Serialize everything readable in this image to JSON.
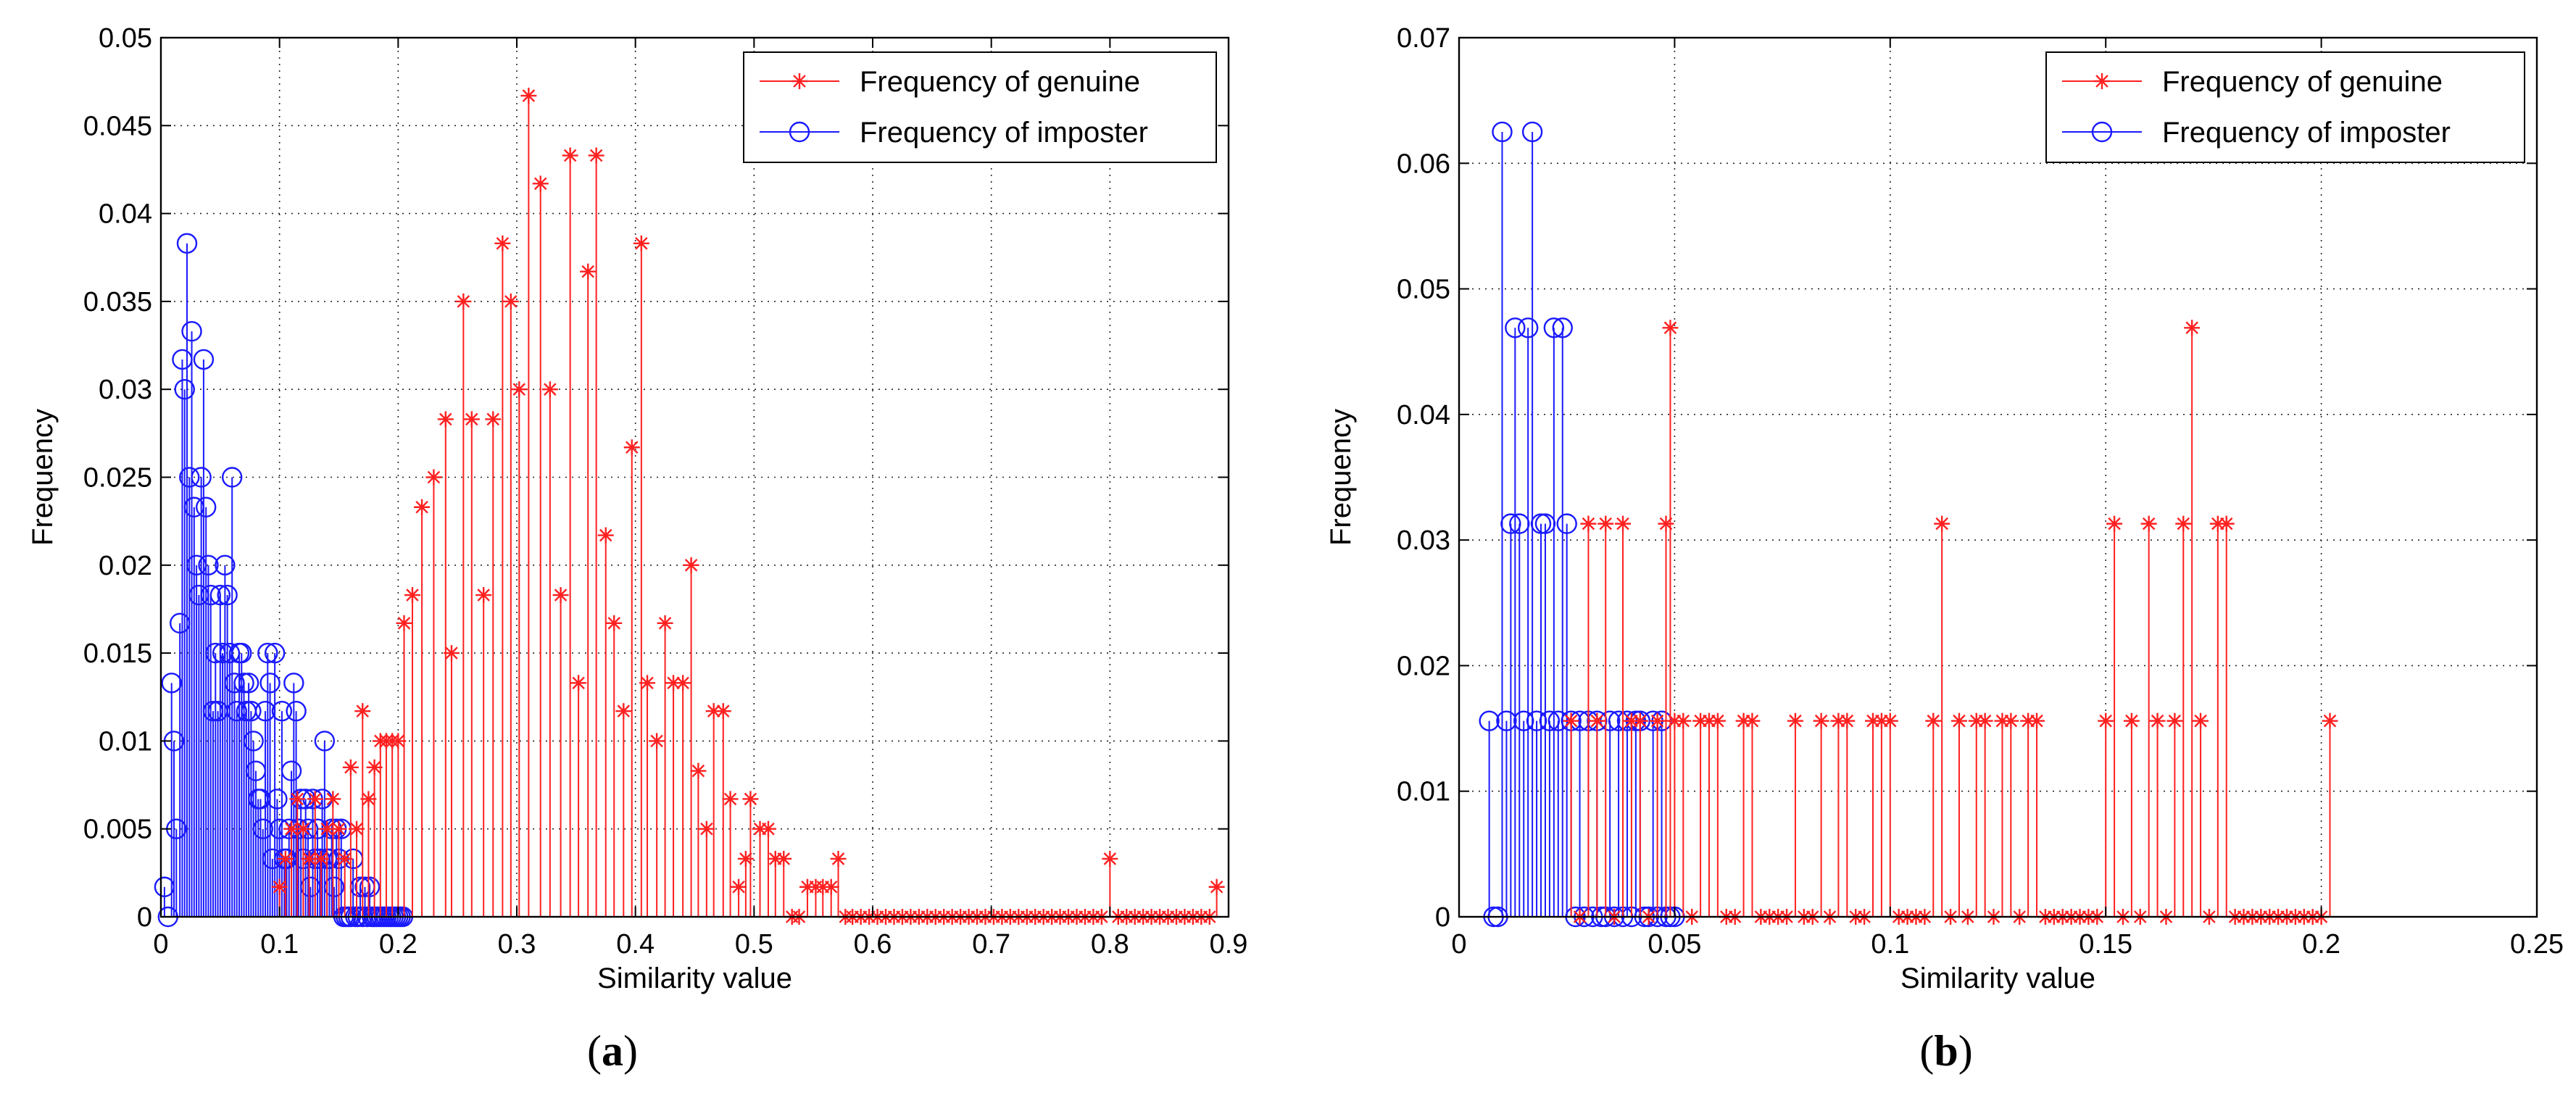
{
  "chart_data": [
    {
      "type": "stem",
      "panel_label": "a",
      "xlabel": "Similarity value",
      "ylabel": "Frequency",
      "xlim": [
        0,
        0.9
      ],
      "ylim": [
        0,
        0.05
      ],
      "xticks": [
        "0",
        "0.1",
        "0.2",
        "0.3",
        "0.4",
        "0.5",
        "0.6",
        "0.7",
        "0.8",
        "0.9"
      ],
      "yticks": [
        "0",
        "0.005",
        "0.01",
        "0.015",
        "0.02",
        "0.025",
        "0.03",
        "0.035",
        "0.04",
        "0.045",
        "0.05"
      ],
      "grid": true,
      "legend_position": "top-right",
      "series": [
        {
          "name": "Frequency of genuine",
          "color": "#ff2020",
          "marker": "star",
          "x": [
            0.1,
            0.105,
            0.11,
            0.115,
            0.12,
            0.125,
            0.13,
            0.135,
            0.14,
            0.145,
            0.15,
            0.155,
            0.16,
            0.165,
            0.17,
            0.175,
            0.18,
            0.185,
            0.19,
            0.195,
            0.2,
            0.205,
            0.212,
            0.22,
            0.23,
            0.24,
            0.245,
            0.255,
            0.262,
            0.272,
            0.28,
            0.288,
            0.295,
            0.302,
            0.31,
            0.32,
            0.328,
            0.337,
            0.345,
            0.352,
            0.36,
            0.367,
            0.375,
            0.382,
            0.39,
            0.397,
            0.405,
            0.41,
            0.418,
            0.425,
            0.432,
            0.44,
            0.447,
            0.453,
            0.46,
            0.466,
            0.474,
            0.48,
            0.487,
            0.493,
            0.497,
            0.505,
            0.512,
            0.518,
            0.525,
            0.532,
            0.538,
            0.545,
            0.552,
            0.558,
            0.565,
            0.571,
            0.577,
            0.583,
            0.59,
            0.597,
            0.604,
            0.611,
            0.618,
            0.625,
            0.632,
            0.639,
            0.646,
            0.653,
            0.66,
            0.667,
            0.674,
            0.681,
            0.688,
            0.695,
            0.702,
            0.709,
            0.716,
            0.723,
            0.73,
            0.737,
            0.744,
            0.751,
            0.758,
            0.765,
            0.772,
            0.779,
            0.786,
            0.793,
            0.8,
            0.807,
            0.814,
            0.821,
            0.828,
            0.835,
            0.842,
            0.849,
            0.856,
            0.863,
            0.87,
            0.877,
            0.884,
            0.89
          ],
          "values": [
            0.0017,
            0.0033,
            0.005,
            0.0067,
            0.005,
            0.0033,
            0.0067,
            0.0033,
            0.005,
            0.0067,
            0.005,
            0.0033,
            0.0085,
            0.005,
            0.0117,
            0.0067,
            0.0085,
            0.01,
            0.01,
            0.01,
            0.01,
            0.0167,
            0.0183,
            0.0233,
            0.025,
            0.0283,
            0.015,
            0.035,
            0.0283,
            0.0183,
            0.0283,
            0.0383,
            0.035,
            0.03,
            0.0467,
            0.0417,
            0.03,
            0.0183,
            0.0433,
            0.0133,
            0.0367,
            0.0433,
            0.0217,
            0.0167,
            0.0117,
            0.0267,
            0.0383,
            0.0133,
            0.01,
            0.0167,
            0.0133,
            0.0133,
            0.02,
            0.0083,
            0.005,
            0.0117,
            0.0117,
            0.0067,
            0.0017,
            0.0033,
            0.0067,
            0.005,
            0.005,
            0.0033,
            0.0033,
            0.0,
            0.0,
            0.0017,
            0.0017,
            0.0017,
            0.0017,
            0.0033,
            0.0,
            0.0,
            0.0,
            0.0,
            0.0,
            0.0,
            0.0,
            0.0,
            0.0,
            0.0,
            0.0,
            0.0,
            0.0,
            0.0,
            0.0,
            0.0,
            0.0,
            0.0,
            0.0,
            0.0,
            0.0,
            0.0,
            0.0,
            0.0,
            0.0,
            0.0,
            0.0,
            0.0,
            0.0,
            0.0,
            0.0,
            0.0,
            0.0033,
            0.0,
            0.0,
            0.0,
            0.0,
            0.0,
            0.0,
            0.0,
            0.0,
            0.0,
            0.0,
            0.0,
            0.0,
            0.0017
          ]
        },
        {
          "name": "Frequency of imposter",
          "color": "#1a1aff",
          "marker": "circle",
          "x": [
            0.003,
            0.006,
            0.009,
            0.011,
            0.013,
            0.016,
            0.018,
            0.02,
            0.022,
            0.024,
            0.026,
            0.028,
            0.03,
            0.032,
            0.034,
            0.036,
            0.038,
            0.04,
            0.042,
            0.044,
            0.046,
            0.048,
            0.05,
            0.052,
            0.054,
            0.056,
            0.058,
            0.06,
            0.062,
            0.064,
            0.066,
            0.068,
            0.07,
            0.072,
            0.074,
            0.076,
            0.078,
            0.08,
            0.082,
            0.084,
            0.086,
            0.088,
            0.09,
            0.092,
            0.094,
            0.096,
            0.098,
            0.1,
            0.102,
            0.104,
            0.106,
            0.108,
            0.11,
            0.112,
            0.114,
            0.116,
            0.118,
            0.12,
            0.122,
            0.124,
            0.126,
            0.128,
            0.13,
            0.132,
            0.134,
            0.136,
            0.138,
            0.14,
            0.142,
            0.144,
            0.146,
            0.148,
            0.15,
            0.152,
            0.154,
            0.156,
            0.158,
            0.16,
            0.162,
            0.164,
            0.166,
            0.168,
            0.17,
            0.172,
            0.174,
            0.176,
            0.178,
            0.18,
            0.182,
            0.184,
            0.186,
            0.188,
            0.19,
            0.192,
            0.194,
            0.196,
            0.198,
            0.2,
            0.202,
            0.204
          ],
          "values": [
            0.0017,
            0.0,
            0.0133,
            0.01,
            0.005,
            0.0167,
            0.0317,
            0.03,
            0.0383,
            0.025,
            0.0333,
            0.0233,
            0.02,
            0.0183,
            0.025,
            0.0317,
            0.0233,
            0.02,
            0.0183,
            0.0117,
            0.015,
            0.0117,
            0.0183,
            0.015,
            0.02,
            0.0183,
            0.015,
            0.025,
            0.0133,
            0.0117,
            0.015,
            0.015,
            0.0133,
            0.0117,
            0.0133,
            0.0117,
            0.01,
            0.0083,
            0.0067,
            0.0067,
            0.005,
            0.0117,
            0.015,
            0.0133,
            0.0033,
            0.015,
            0.0067,
            0.005,
            0.0117,
            0.0033,
            0.0033,
            0.005,
            0.0083,
            0.0133,
            0.0117,
            0.005,
            0.0067,
            0.0033,
            0.0067,
            0.005,
            0.0017,
            0.0067,
            0.0033,
            0.005,
            0.0033,
            0.0067,
            0.01,
            0.0033,
            0.0033,
            0.005,
            0.0017,
            0.005,
            0.0033,
            0.005,
            0.0,
            0.0,
            0.0,
            0.0,
            0.0033,
            0.0,
            0.0,
            0.0017,
            0.0,
            0.0017,
            0.0,
            0.0017,
            0.0,
            0.0,
            0.0,
            0.0,
            0.0,
            0.0,
            0.0,
            0.0,
            0.0,
            0.0,
            0.0,
            0.0,
            0.0,
            0.0
          ]
        }
      ]
    },
    {
      "type": "stem",
      "panel_label": "b",
      "xlabel": "Similarity value",
      "ylabel": "Frequency",
      "xlim": [
        0,
        0.25
      ],
      "ylim": [
        0,
        0.07
      ],
      "xticks": [
        "0",
        "0.05",
        "0.1",
        "0.15",
        "0.2",
        "0.25"
      ],
      "yticks": [
        "0",
        "0.01",
        "0.02",
        "0.03",
        "0.04",
        "0.05",
        "0.06",
        "0.07"
      ],
      "grid": true,
      "legend_position": "top-right",
      "series": [
        {
          "name": "Frequency of genuine",
          "color": "#ff2020",
          "marker": "star",
          "x": [
            0.026,
            0.028,
            0.03,
            0.032,
            0.034,
            0.036,
            0.038,
            0.04,
            0.042,
            0.044,
            0.046,
            0.048,
            0.049,
            0.05,
            0.052,
            0.054,
            0.056,
            0.058,
            0.06,
            0.062,
            0.064,
            0.066,
            0.068,
            0.07,
            0.072,
            0.074,
            0.076,
            0.078,
            0.08,
            0.082,
            0.084,
            0.086,
            0.088,
            0.09,
            0.092,
            0.094,
            0.096,
            0.098,
            0.1,
            0.102,
            0.104,
            0.106,
            0.108,
            0.11,
            0.112,
            0.114,
            0.116,
            0.118,
            0.12,
            0.122,
            0.124,
            0.126,
            0.128,
            0.13,
            0.132,
            0.134,
            0.136,
            0.138,
            0.14,
            0.142,
            0.144,
            0.146,
            0.148,
            0.15,
            0.152,
            0.154,
            0.156,
            0.158,
            0.16,
            0.162,
            0.164,
            0.166,
            0.168,
            0.17,
            0.172,
            0.174,
            0.176,
            0.178,
            0.18,
            0.182,
            0.184,
            0.186,
            0.188,
            0.19,
            0.192,
            0.194,
            0.196,
            0.198,
            0.2,
            0.202
          ],
          "values": [
            0.0156,
            0.0,
            0.0313,
            0.0156,
            0.0313,
            0.0,
            0.0313,
            0.0156,
            0.0156,
            0.0,
            0.0156,
            0.0313,
            0.0469,
            0.0156,
            0.0156,
            0.0,
            0.0156,
            0.0156,
            0.0156,
            0.0,
            0.0,
            0.0156,
            0.0156,
            0.0,
            0.0,
            0.0,
            0.0,
            0.0156,
            0.0,
            0.0,
            0.0156,
            0.0,
            0.0156,
            0.0156,
            0.0,
            0.0,
            0.0156,
            0.0156,
            0.0156,
            0.0,
            0.0,
            0.0,
            0.0,
            0.0156,
            0.0313,
            0.0,
            0.0156,
            0.0,
            0.0156,
            0.0156,
            0.0,
            0.0156,
            0.0156,
            0.0,
            0.0156,
            0.0156,
            0.0,
            0.0,
            0.0,
            0.0,
            0.0,
            0.0,
            0.0,
            0.0156,
            0.0313,
            0.0,
            0.0156,
            0.0,
            0.0313,
            0.0156,
            0.0,
            0.0156,
            0.0313,
            0.0469,
            0.0156,
            0.0,
            0.0313,
            0.0313,
            0.0,
            0.0,
            0.0,
            0.0,
            0.0,
            0.0,
            0.0,
            0.0,
            0.0,
            0.0,
            0.0,
            0.0156
          ]
        },
        {
          "name": "Frequency of imposter",
          "color": "#1a1aff",
          "marker": "circle",
          "x": [
            0.007,
            0.008,
            0.009,
            0.01,
            0.011,
            0.012,
            0.013,
            0.014,
            0.015,
            0.016,
            0.017,
            0.018,
            0.019,
            0.02,
            0.021,
            0.022,
            0.023,
            0.024,
            0.025,
            0.026,
            0.027,
            0.028,
            0.029,
            0.03,
            0.031,
            0.032,
            0.033,
            0.034,
            0.035,
            0.036,
            0.037,
            0.038,
            0.039,
            0.04,
            0.041,
            0.042,
            0.043,
            0.044,
            0.045,
            0.046,
            0.047,
            0.048,
            0.049,
            0.05
          ],
          "values": [
            0.0156,
            0.0,
            0.0,
            0.0625,
            0.0156,
            0.0313,
            0.0469,
            0.0313,
            0.0156,
            0.0469,
            0.0625,
            0.0156,
            0.0313,
            0.0313,
            0.0156,
            0.0469,
            0.0156,
            0.0469,
            0.0313,
            0.0156,
            0.0,
            0.0156,
            0.0,
            0.0156,
            0.0,
            0.0156,
            0.0,
            0.0,
            0.0156,
            0.0,
            0.0156,
            0.0,
            0.0156,
            0.0,
            0.0156,
            0.0156,
            0.0,
            0.0,
            0.0156,
            0.0,
            0.0156,
            0.0,
            0.0,
            0.0
          ]
        }
      ]
    }
  ]
}
